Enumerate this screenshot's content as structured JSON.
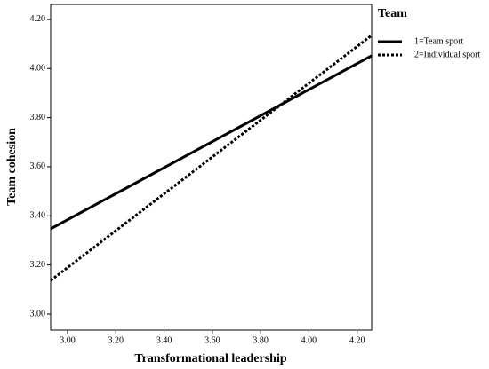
{
  "chart_data": {
    "type": "line",
    "x_label": "Transformational leadership",
    "y_label": "Team cohesion",
    "legend_title": "Team",
    "legend": "right",
    "x": [
      2.93,
      4.26
    ],
    "series": [
      {
        "name": "1=Team sport",
        "color": "#000000",
        "line_style": "solid",
        "values": [
          3.347,
          4.052
        ]
      },
      {
        "name": "2=Individual sport",
        "color": "#000000",
        "line_style": "dotted",
        "values": [
          3.137,
          4.135
        ]
      }
    ],
    "xlim": [
      2.93,
      4.26
    ],
    "ylim": [
      2.935,
      4.261
    ],
    "xticks": [
      {
        "value": 3,
        "label": "3.00"
      },
      {
        "value": 3.2,
        "label": "3.20"
      },
      {
        "value": 3.4,
        "label": "3.40"
      },
      {
        "value": 3.6,
        "label": "3.60"
      },
      {
        "value": 3.8,
        "label": "3.80"
      },
      {
        "value": 4,
        "label": "4.00"
      },
      {
        "value": 4.2,
        "label": "4.20"
      }
    ],
    "yticks": [
      {
        "value": 3,
        "label": "3.00"
      },
      {
        "value": 3.2,
        "label": "3.20"
      },
      {
        "value": 3.4,
        "label": "3.40"
      },
      {
        "value": 3.6,
        "label": "3.60"
      },
      {
        "value": 3.8,
        "label": "3.80"
      },
      {
        "value": 4,
        "label": "4.00"
      },
      {
        "value": 4.2,
        "label": "4.20"
      }
    ]
  }
}
